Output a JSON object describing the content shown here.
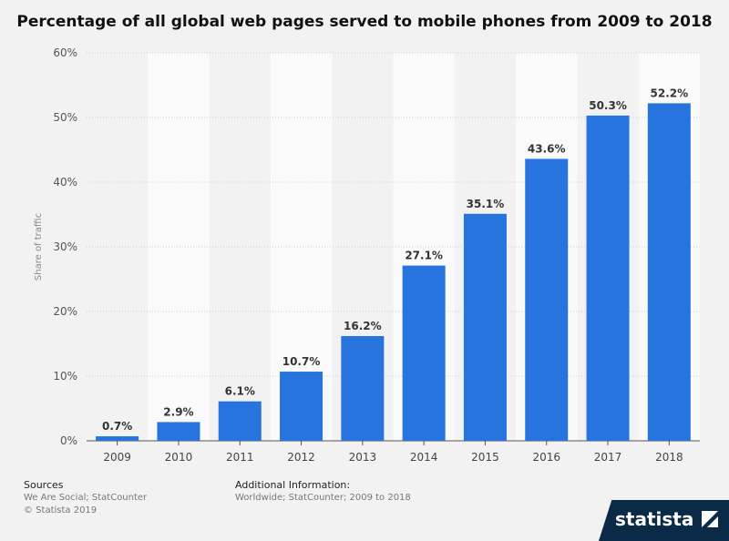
{
  "chart_data": {
    "type": "bar",
    "title": "Percentage of all global web pages served to mobile phones from 2009 to 2018",
    "ylabel": "Share of traffic",
    "xlabel": "",
    "categories": [
      "2009",
      "2010",
      "2011",
      "2012",
      "2013",
      "2014",
      "2015",
      "2016",
      "2017",
      "2018"
    ],
    "values": [
      0.7,
      2.9,
      6.1,
      10.7,
      16.2,
      27.1,
      35.1,
      43.6,
      50.3,
      52.2
    ],
    "value_labels": [
      "0.7%",
      "2.9%",
      "6.1%",
      "10.7%",
      "16.2%",
      "27.1%",
      "35.1%",
      "43.6%",
      "50.3%",
      "52.2%"
    ],
    "ylim": [
      0,
      60
    ],
    "yticks": [
      0,
      10,
      20,
      30,
      40,
      50,
      60
    ],
    "ytick_labels": [
      "0%",
      "10%",
      "20%",
      "30%",
      "40%",
      "50%",
      "60%"
    ],
    "grid": true,
    "bar_color": "#2874de"
  },
  "footer": {
    "sources_heading": "Sources",
    "sources_text": "We Are Social; StatCounter",
    "copyright": "© Statista 2019",
    "additional_heading": "Additional Information:",
    "additional_text": "Worldwide; StatCounter; 2009 to 2018",
    "brand": "statista"
  }
}
